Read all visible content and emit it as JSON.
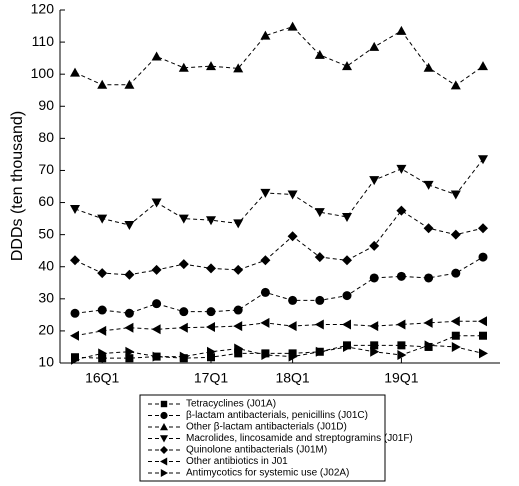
{
  "chart_data": {
    "type": "line",
    "y_label": "DDDs (ten thousand)",
    "categories": [
      null,
      "16Q1",
      null,
      null,
      null,
      "17Q1",
      null,
      null,
      "18Q1",
      null,
      null,
      null,
      "19Q1",
      null,
      null,
      null
    ],
    "ylim": [
      10,
      120
    ],
    "yticks": [
      10,
      20,
      30,
      40,
      50,
      60,
      70,
      80,
      90,
      100,
      110,
      120
    ],
    "series": [
      {
        "name": "Tetracyclines (J01A)",
        "marker": "square",
        "color": "#000000",
        "values": [
          11.8,
          11.5,
          11.5,
          12,
          11.5,
          11.8,
          13,
          13,
          13,
          13.5,
          15.5,
          15.5,
          15.5,
          15,
          18.5,
          18.5
        ]
      },
      {
        "name": "β-lactam antibacterials, penicillins (J01C)",
        "marker": "circle",
        "color": "#000000",
        "values": [
          25.5,
          26.5,
          25.5,
          28.5,
          26,
          26,
          26.5,
          32,
          29.5,
          29.5,
          31,
          36.5,
          37,
          36.5,
          38,
          43
        ]
      },
      {
        "name": "Other β-lactam antibacterials (J01D)",
        "marker": "triangle-up",
        "color": "#000000",
        "values": [
          100.5,
          96.7,
          96.7,
          105.5,
          102,
          102.5,
          101.8,
          112,
          114.8,
          106,
          102.5,
          108.5,
          113.5,
          102,
          96.5,
          102.5
        ]
      },
      {
        "name": "Macrolides, lincosamide and streptogramins (J01F)",
        "marker": "triangle-down",
        "color": "#000000",
        "values": [
          58,
          55,
          53,
          60,
          55,
          54.5,
          53.5,
          63,
          62.5,
          57,
          55.5,
          67,
          70.5,
          65.5,
          62.5,
          73.5
        ]
      },
      {
        "name": "Quinolone antibacterials (J01M)",
        "marker": "diamond",
        "color": "#000000",
        "values": [
          42,
          38,
          37.5,
          39,
          40.8,
          39.5,
          39,
          42,
          49.5,
          43,
          42,
          46.5,
          57.5,
          52,
          50,
          52
        ]
      },
      {
        "name": "Other antibiotics in J01",
        "marker": "triangle-left",
        "color": "#000000",
        "values": [
          18.5,
          20,
          21,
          20.5,
          21,
          21.2,
          21.5,
          22.5,
          21.5,
          22,
          22,
          21.5,
          22,
          22.5,
          23,
          23
        ]
      },
      {
        "name": "Antimycotics for systemic use (J02A)",
        "marker": "triangle-right",
        "color": "#000000",
        "values": [
          11,
          13,
          13.5,
          12,
          12,
          13.5,
          14.5,
          12.5,
          12,
          13.5,
          15,
          13.5,
          12.5,
          15.5,
          15,
          13
        ]
      }
    ]
  }
}
